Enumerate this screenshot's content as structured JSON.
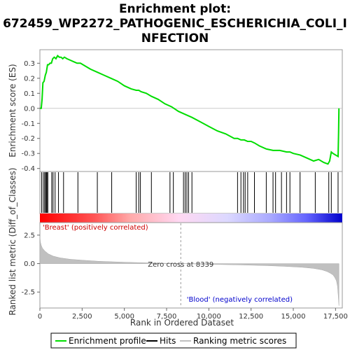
{
  "chart_data": {
    "type": "line",
    "title_lines": [
      "Enrichment plot:",
      "672459_WP2272_PATHOGENIC_ESCHERICHIA_COLI_I",
      "NFECTION"
    ],
    "xlabel": "Rank in Ordered Dataset",
    "xlim": [
      0,
      17900
    ],
    "x_ticks": [
      0,
      2500,
      5000,
      7500,
      10000,
      12500,
      15000,
      17500
    ],
    "x_tick_labels": [
      "0",
      "2,500",
      "5,000",
      "7,500",
      "10,000",
      "12,500",
      "15,000",
      "17,500"
    ],
    "es_panel": {
      "ylabel": "Enrichment score (ES)",
      "ylim": [
        -0.42,
        0.39
      ],
      "y_ticks": [
        0.3,
        0.2,
        0.1,
        0.0,
        -0.1,
        -0.2,
        -0.3,
        -0.4
      ],
      "y_tick_labels": [
        "0.3",
        "0.2",
        "0.1",
        "0.0",
        "-0.1",
        "-0.2",
        "-0.3",
        "-0.4"
      ],
      "series_name": "Enrichment profile",
      "color": "#00dd00",
      "profile_x": [
        0,
        80,
        130,
        180,
        250,
        320,
        380,
        450,
        520,
        600,
        680,
        760,
        850,
        950,
        1050,
        1150,
        1250,
        1350,
        1450,
        1600,
        1800,
        2000,
        2200,
        2400,
        2700,
        3000,
        3400,
        3800,
        4200,
        4600,
        5000,
        5400,
        5700,
        5850,
        6000,
        6300,
        6600,
        7000,
        7400,
        7800,
        8200,
        8600,
        9000,
        9500,
        10000,
        10500,
        11000,
        11500,
        11700,
        11900,
        12100,
        12300,
        12500,
        12700,
        13000,
        13400,
        13800,
        14200,
        14600,
        14800,
        15000,
        15400,
        15800,
        16200,
        16500,
        16800,
        17050,
        17150,
        17250,
        17350,
        17500,
        17650,
        17680,
        17700
      ],
      "profile_y": [
        0.0,
        0.0,
        0.06,
        0.17,
        0.18,
        0.22,
        0.24,
        0.29,
        0.29,
        0.3,
        0.3,
        0.33,
        0.34,
        0.33,
        0.35,
        0.34,
        0.34,
        0.33,
        0.34,
        0.33,
        0.32,
        0.31,
        0.3,
        0.3,
        0.28,
        0.26,
        0.24,
        0.22,
        0.2,
        0.18,
        0.15,
        0.13,
        0.12,
        0.12,
        0.11,
        0.1,
        0.08,
        0.06,
        0.03,
        0.01,
        -0.02,
        -0.04,
        -0.06,
        -0.09,
        -0.12,
        -0.15,
        -0.17,
        -0.2,
        -0.2,
        -0.21,
        -0.21,
        -0.22,
        -0.22,
        -0.23,
        -0.25,
        -0.27,
        -0.28,
        -0.28,
        -0.29,
        -0.29,
        -0.3,
        -0.31,
        -0.33,
        -0.35,
        -0.34,
        -0.36,
        -0.37,
        -0.35,
        -0.29,
        -0.3,
        -0.31,
        -0.32,
        -0.16,
        0.0
      ]
    },
    "hits": {
      "series_name": "Hits",
      "positions": [
        100,
        200,
        280,
        340,
        380,
        420,
        470,
        700,
        780,
        900,
        1100,
        1400,
        2250,
        3400,
        4250,
        5700,
        5850,
        5950,
        6600,
        7700,
        7900,
        8500,
        8600,
        8700,
        8800,
        9000,
        11700,
        11900,
        12050,
        12150,
        12300,
        12700,
        13400,
        13800,
        13950,
        14300,
        14600,
        14800,
        15400,
        16300,
        17100,
        17250,
        17650
      ]
    },
    "metric_panel": {
      "ylabel": "Ranked list metric (Diff_of_Classes)",
      "ylim": [
        -3.9,
        3.6
      ],
      "y_ticks": [
        2.5,
        0.0,
        -2.5
      ],
      "y_tick_labels": [
        "2.5",
        "0.0",
        "-2.5"
      ],
      "series_name": "Ranking metric scores",
      "profile_x": [
        0,
        30,
        80,
        150,
        300,
        500,
        800,
        1200,
        1800,
        2500,
        3500,
        5000,
        6500,
        8339,
        10000,
        12000,
        13500,
        14500,
        15500,
        16200,
        16700,
        17000,
        17200,
        17350,
        17450,
        17550,
        17620,
        17660,
        17700
      ],
      "profile_y": [
        2.4,
        1.9,
        1.6,
        1.35,
        1.1,
        0.85,
        0.65,
        0.5,
        0.38,
        0.3,
        0.2,
        0.12,
        0.06,
        0.0,
        -0.06,
        -0.12,
        -0.18,
        -0.24,
        -0.32,
        -0.42,
        -0.55,
        -0.7,
        -0.85,
        -1.0,
        -1.2,
        -1.5,
        -2.0,
        -2.8,
        -3.7
      ]
    },
    "annotations": {
      "positive_label": "'Breast' (positively correlated)",
      "negative_label": "'Blood' (negatively correlated)",
      "zero_cross_label": "Zero cross at 8339",
      "zero_cross_rank": 8339
    },
    "legend": {
      "placement": "bottom",
      "items": [
        {
          "label": "Enrichment profile",
          "color": "#00dd00"
        },
        {
          "label": "Hits",
          "color": "#000000"
        },
        {
          "label": "Ranking metric scores",
          "color": "#c0c0c0"
        }
      ]
    }
  }
}
